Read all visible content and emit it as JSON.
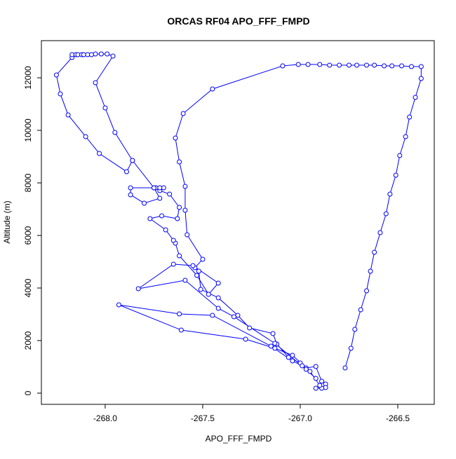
{
  "chart_data": {
    "type": "line",
    "title": "ORCAS RF04 APO_FFF_FMPD",
    "x_label": "APO_FFF_FMPD",
    "y_label": "Altitude (m)",
    "color": "#0000ff",
    "markers": true,
    "grid": false,
    "xlim": [
      -268.327,
      -266.313
    ],
    "ylim": [
      -427,
      13413
    ],
    "xticks": [
      {
        "value": -268.0,
        "label": "-268.0"
      },
      {
        "value": -267.5,
        "label": "-267.5"
      },
      {
        "value": -267.0,
        "label": "-267.0"
      },
      {
        "value": -266.5,
        "label": "-266.5"
      }
    ],
    "yticks": [
      0,
      2000,
      4000,
      6000,
      8000,
      10000,
      12000
    ],
    "x": [
      -266.77,
      -266.74,
      -266.72,
      -266.69,
      -266.66,
      -266.64,
      -266.62,
      -266.59,
      -266.56,
      -266.54,
      -266.51,
      -266.49,
      -266.46,
      -266.44,
      -266.41,
      -266.38,
      -266.38,
      -266.43,
      -266.48,
      -266.53,
      -266.57,
      -266.62,
      -266.66,
      -266.71,
      -266.75,
      -266.8,
      -266.85,
      -266.9,
      -266.96,
      -267.01,
      -267.09,
      -267.45,
      -267.6,
      -267.64,
      -267.62,
      -267.59,
      -267.59,
      -267.58,
      -267.5,
      -267.54,
      -267.52,
      -267.51,
      -267.42,
      -267.32,
      -267.26,
      -267.14,
      -267.12,
      -267.06,
      -267.0,
      -266.97,
      -266.92,
      -266.89,
      -266.87,
      -266.87,
      -266.89,
      -266.92,
      -266.9,
      -266.95,
      -267.04,
      -267.13,
      -267.28,
      -267.61,
      -267.93,
      -267.62,
      -267.45,
      -267.15,
      -267.04,
      -266.99,
      -266.92,
      -266.97,
      -267.13,
      -267.34,
      -267.42,
      -267.59,
      -267.83,
      -267.65,
      -267.55,
      -267.42,
      -267.47,
      -267.53,
      -267.62,
      -267.64,
      -267.65,
      -267.69,
      -267.77,
      -267.71,
      -267.63,
      -267.62,
      -267.67,
      -267.72,
      -267.7,
      -267.74,
      -267.75,
      -267.86,
      -267.89,
      -268.03,
      -268.1,
      -268.19,
      -268.23,
      -268.25,
      -268.17,
      -268.17,
      -268.15,
      -268.14,
      -268.12,
      -268.11,
      -268.09,
      -268.07,
      -268.05,
      -268.02,
      -267.99,
      -267.96,
      -268.05,
      -268.0,
      -267.95,
      -267.86,
      -267.75,
      -267.72,
      -267.8,
      -267.87,
      -267.87,
      -267.72
    ],
    "values": [
      960,
      1707,
      2427,
      3173,
      3893,
      4640,
      5360,
      6107,
      6827,
      7573,
      8293,
      9040,
      9760,
      10507,
      11253,
      11973,
      12427,
      12427,
      12453,
      12453,
      12453,
      12480,
      12480,
      12480,
      12480,
      12480,
      12480,
      12507,
      12507,
      12507,
      12453,
      11573,
      10640,
      9707,
      8800,
      7867,
      6960,
      6027,
      5093,
      4773,
      4640,
      3947,
      3627,
      2960,
      2480,
      2267,
      1867,
      1360,
      1147,
      960,
      1013,
      453,
      347,
      213,
      187,
      187,
      293,
      827,
      1440,
      1707,
      2053,
      2400,
      3360,
      3013,
      2960,
      1787,
      1227,
      1040,
      560,
      907,
      1893,
      2907,
      3227,
      4293,
      3973,
      4907,
      4853,
      4187,
      3760,
      4480,
      5227,
      5707,
      5813,
      6213,
      6640,
      6747,
      6640,
      7067,
      7573,
      7707,
      7813,
      7813,
      7813,
      8853,
      8427,
      9120,
      9760,
      10587,
      11387,
      12107,
      12773,
      12880,
      12880,
      12880,
      12880,
      12880,
      12880,
      12880,
      12907,
      12907,
      12907,
      12827,
      11813,
      10853,
      9920,
      8853,
      7813,
      7413,
      7227,
      7547,
      7813,
      7813
    ]
  }
}
